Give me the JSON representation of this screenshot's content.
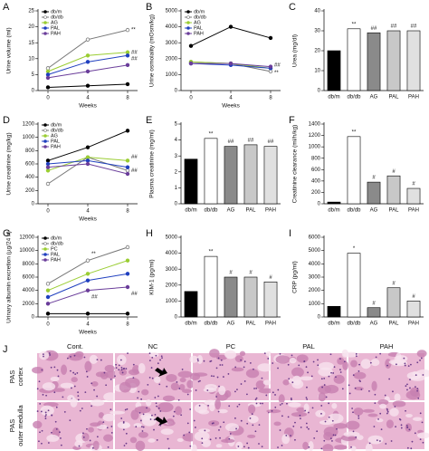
{
  "chart_data": [
    {
      "type": "line",
      "panel": "A",
      "ylabel": "Urine volume (ml)",
      "xlabel": "Weeks",
      "x": [
        0,
        4,
        8
      ],
      "xlim": [
        -1,
        9
      ],
      "xticks": [
        0,
        4,
        8
      ],
      "ylim": [
        0,
        25
      ],
      "yticks": [
        0,
        5,
        10,
        15,
        20,
        25
      ],
      "series": [
        {
          "name": "db/m",
          "color": "#000000",
          "values": [
            1,
            1.5,
            2
          ]
        },
        {
          "name": "db/db",
          "color": "#777777",
          "values": [
            7,
            16,
            19
          ]
        },
        {
          "name": "AG",
          "color": "#9acd32",
          "values": [
            6,
            11,
            12
          ]
        },
        {
          "name": "PAL",
          "color": "#1f3fbf",
          "values": [
            5,
            9,
            11
          ]
        },
        {
          "name": "PAH",
          "color": "#6a3d9a",
          "values": [
            4,
            6,
            8
          ]
        }
      ],
      "annotations": [
        {
          "text": "**",
          "x": 8,
          "y": 19
        },
        {
          "text": "##",
          "x": 8,
          "y": 12
        },
        {
          "text": "##",
          "x": 8,
          "y": 10
        }
      ]
    },
    {
      "type": "line",
      "panel": "B",
      "ylabel": "Urine osmolality (mOsm/kg)",
      "xlabel": "Weeks",
      "x": [
        0,
        4,
        8
      ],
      "xlim": [
        -1,
        9
      ],
      "xticks": [
        0,
        4,
        8
      ],
      "ylim": [
        0,
        5000
      ],
      "yticks": [
        0,
        1000,
        2000,
        3000,
        4000,
        5000
      ],
      "series": [
        {
          "name": "db/m",
          "color": "#000000",
          "values": [
            2800,
            4000,
            3300
          ]
        },
        {
          "name": "db/db",
          "color": "#777777",
          "values": [
            1800,
            1700,
            1200
          ]
        },
        {
          "name": "AG",
          "color": "#9acd32",
          "values": [
            1800,
            1700,
            1400
          ]
        },
        {
          "name": "PAL",
          "color": "#1f3fbf",
          "values": [
            1700,
            1600,
            1400
          ]
        },
        {
          "name": "PAH",
          "color": "#6a3d9a",
          "values": [
            1700,
            1700,
            1500
          ]
        }
      ],
      "annotations": [
        {
          "text": "##",
          "x": 8,
          "y": 1600
        },
        {
          "text": "**",
          "x": 8,
          "y": 1100
        }
      ]
    },
    {
      "type": "bar",
      "panel": "C",
      "ylabel": "Urea (mg/dl)",
      "categories": [
        "db/m",
        "db/db",
        "AG",
        "PAL",
        "PAH"
      ],
      "values": [
        20,
        31,
        29,
        30,
        30
      ],
      "colors": [
        "#000000",
        "#ffffff",
        "#8a8a8a",
        "#c8c8c8",
        "#e0e0e0"
      ],
      "ylim": [
        0,
        40
      ],
      "yticks": [
        0,
        10,
        20,
        30,
        40
      ],
      "annotations": [
        null,
        "**",
        "##",
        "##",
        "##"
      ]
    },
    {
      "type": "line",
      "panel": "D",
      "ylabel": "Urine creatinine (mg/kg)",
      "xlabel": "Weeks",
      "x": [
        0,
        4,
        8
      ],
      "xlim": [
        -1,
        9
      ],
      "xticks": [
        0,
        4,
        8
      ],
      "ylim": [
        0,
        1200
      ],
      "yticks": [
        0,
        200,
        400,
        600,
        800,
        1000,
        1200
      ],
      "series": [
        {
          "name": "db/m",
          "color": "#000000",
          "values": [
            650,
            850,
            1100
          ]
        },
        {
          "name": "db/db",
          "color": "#777777",
          "values": [
            300,
            700,
            500
          ]
        },
        {
          "name": "AG",
          "color": "#9acd32",
          "values": [
            500,
            700,
            650
          ]
        },
        {
          "name": "PAL",
          "color": "#1f3fbf",
          "values": [
            600,
            650,
            550
          ]
        },
        {
          "name": "PAH",
          "color": "#6a3d9a",
          "values": [
            550,
            600,
            450
          ]
        }
      ],
      "annotations": [
        {
          "text": "##",
          "x": 8,
          "y": 700
        },
        {
          "text": "##",
          "x": 8,
          "y": 500
        }
      ]
    },
    {
      "type": "bar",
      "panel": "E",
      "ylabel": "Plasma creatinine (mg/ml)",
      "categories": [
        "db/m",
        "db/db",
        "AG",
        "PAL",
        "PAH"
      ],
      "values": [
        2.8,
        4.1,
        3.6,
        3.7,
        3.6
      ],
      "colors": [
        "#000000",
        "#ffffff",
        "#8a8a8a",
        "#c8c8c8",
        "#e0e0e0"
      ],
      "ylim": [
        0,
        5
      ],
      "yticks": [
        0,
        1,
        2,
        3,
        4,
        5
      ],
      "annotations": [
        null,
        "**",
        "##",
        "##",
        "##"
      ]
    },
    {
      "type": "bar",
      "panel": "F",
      "ylabel": "Creatinine clearance (ml/h/kg)",
      "categories": [
        "db/m",
        "db/db",
        "AG",
        "PAL",
        "PAH"
      ],
      "values": [
        30,
        1180,
        380,
        490,
        270
      ],
      "colors": [
        "#000000",
        "#ffffff",
        "#8a8a8a",
        "#c8c8c8",
        "#e0e0e0"
      ],
      "ylim": [
        0,
        1400
      ],
      "yticks": [
        0,
        200,
        400,
        600,
        800,
        1000,
        1200,
        1400
      ],
      "annotations": [
        null,
        "**",
        "#",
        "#",
        "#"
      ]
    },
    {
      "type": "line",
      "panel": "G",
      "ylabel": "Urinary albumin excretion (µg/24 h)",
      "xlabel": "Weeks",
      "x": [
        0,
        4,
        8
      ],
      "xlim": [
        -1,
        9
      ],
      "xticks": [
        0,
        4,
        8
      ],
      "ylim": [
        0,
        12000
      ],
      "yticks": [
        0,
        2000,
        4000,
        6000,
        8000,
        10000,
        12000
      ],
      "series": [
        {
          "name": "db/m",
          "color": "#000000",
          "values": [
            500,
            500,
            500
          ]
        },
        {
          "name": "db/db",
          "color": "#777777",
          "values": [
            5000,
            8500,
            10500
          ]
        },
        {
          "name": "PC",
          "color": "#9acd32",
          "values": [
            4000,
            6500,
            8500
          ]
        },
        {
          "name": "PAL",
          "color": "#1f3fbf",
          "values": [
            3000,
            5500,
            6500
          ]
        },
        {
          "name": "PAH",
          "color": "#6a3d9a",
          "values": [
            2000,
            4000,
            4500
          ]
        }
      ],
      "annotations": [
        {
          "text": "**",
          "x": 4,
          "y": 9500
        },
        {
          "text": "##",
          "x": 4,
          "y": 3000
        },
        {
          "text": "##",
          "x": 8,
          "y": 3500
        }
      ]
    },
    {
      "type": "bar",
      "panel": "H",
      "ylabel": "KIM-1 (pg/ml)",
      "categories": [
        "db/m",
        "db/db",
        "AG",
        "PAL",
        "PAH"
      ],
      "values": [
        1600,
        3800,
        2500,
        2500,
        2200
      ],
      "colors": [
        "#000000",
        "#ffffff",
        "#8a8a8a",
        "#c8c8c8",
        "#e0e0e0"
      ],
      "ylim": [
        0,
        5000
      ],
      "yticks": [
        0,
        1000,
        2000,
        3000,
        4000,
        5000
      ],
      "annotations": [
        null,
        "**",
        "#",
        "#",
        "#"
      ]
    },
    {
      "type": "bar",
      "panel": "I",
      "ylabel": "CRP (pg/ml)",
      "categories": [
        "db/m",
        "db/db",
        "AG",
        "PAL",
        "PAH"
      ],
      "values": [
        800,
        4800,
        700,
        2200,
        1200
      ],
      "colors": [
        "#000000",
        "#ffffff",
        "#8a8a8a",
        "#c8c8c8",
        "#e0e0e0"
      ],
      "ylim": [
        0,
        6000
      ],
      "yticks": [
        0,
        1000,
        2000,
        3000,
        4000,
        5000,
        6000
      ],
      "annotations": [
        null,
        "*",
        "#",
        "#",
        "#"
      ]
    }
  ],
  "histology": {
    "panel": "J",
    "columns": [
      "Cont.",
      "NC",
      "PC",
      "PAL",
      "PAH"
    ],
    "rows": [
      [
        "PAS",
        "cortex"
      ],
      [
        "PAS",
        "outer medulla"
      ]
    ]
  }
}
